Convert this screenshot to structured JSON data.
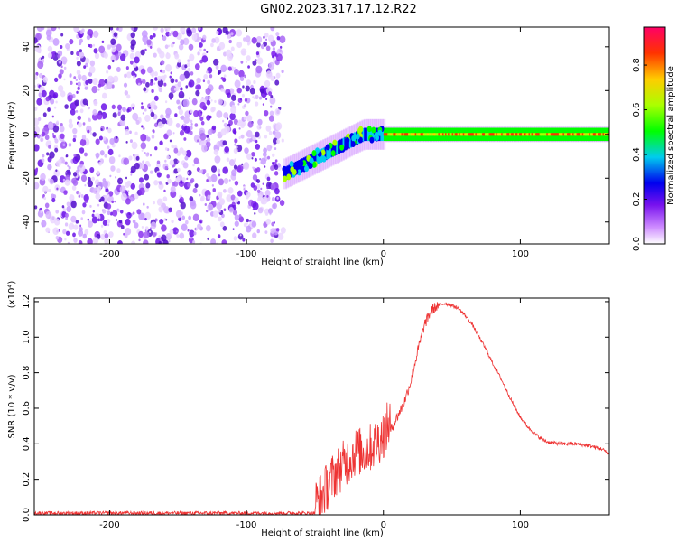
{
  "title": "GN02.2023.317.17.12.R22",
  "chart_data": [
    {
      "type": "heatmap",
      "xlabel": "Height of straight line (km)",
      "ylabel": "Frequency (Hz)",
      "xlim": [
        -255,
        165
      ],
      "ylim": [
        -50,
        49
      ],
      "xticks": [
        -200,
        -100,
        0,
        100
      ],
      "yticks": [
        -40,
        -20,
        0,
        20,
        40
      ],
      "colorbar": {
        "label": "Normalized spectral amplitude",
        "range": [
          0,
          0.97
        ],
        "ticks": [
          "0.0",
          "0.2",
          "0.4",
          "0.6",
          "0.8"
        ],
        "colormap": [
          "#ffffff",
          "#cc88ff",
          "#7711ee",
          "#0000ee",
          "#00ccee",
          "#00ff00",
          "#aaff00",
          "#ffcc00",
          "#ff3300",
          "#ff0066"
        ]
      },
      "description_values": {
        "noise_region_x": [
          -255,
          -73
        ],
        "signal_region_x": [
          -73,
          165
        ],
        "signal_center_freq_hz": 0,
        "signal_start_freq_hz": -18,
        "signal_halfwidth_hz": 3
      }
    },
    {
      "type": "line",
      "xlabel": "Height of straight line (km)",
      "ylabel": "SNR (10 * v/v)",
      "scale_label": "(x10⁴)",
      "xlim": [
        -255,
        165
      ],
      "ylim": [
        0,
        1.22
      ],
      "xticks": [
        -200,
        -100,
        0,
        100
      ],
      "yticks": [
        0.0,
        0.2,
        0.4,
        0.6,
        0.8,
        1.0,
        1.2
      ],
      "color": "#ee3333",
      "series": [
        {
          "x": [
            -255,
            -50,
            -45,
            -40,
            -35,
            -30,
            -25,
            -20,
            -15,
            -10,
            -5,
            0,
            5,
            10,
            15,
            20,
            25,
            30,
            35,
            40,
            45,
            50,
            55,
            60,
            65,
            70,
            75,
            80,
            85,
            90,
            95,
            100,
            105,
            110,
            115,
            120,
            130,
            140,
            150,
            160,
            165
          ],
          "y": [
            0.01,
            0.01,
            0.05,
            0.12,
            0.18,
            0.22,
            0.26,
            0.3,
            0.3,
            0.32,
            0.35,
            0.4,
            0.47,
            0.55,
            0.63,
            0.75,
            0.92,
            1.07,
            1.15,
            1.18,
            1.19,
            1.18,
            1.16,
            1.12,
            1.07,
            1.0,
            0.93,
            0.85,
            0.78,
            0.7,
            0.62,
            0.55,
            0.5,
            0.46,
            0.43,
            0.41,
            0.4,
            0.4,
            0.39,
            0.37,
            0.34
          ]
        }
      ]
    }
  ]
}
